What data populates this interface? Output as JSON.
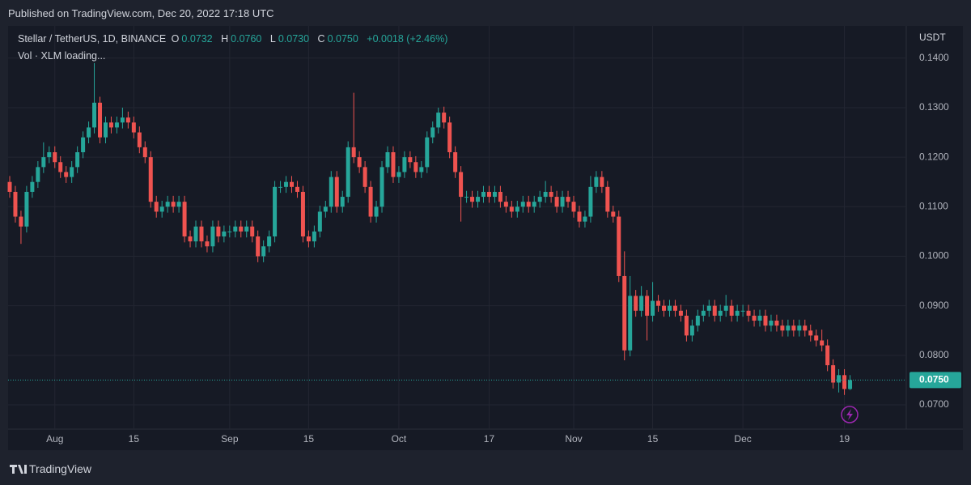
{
  "header": {
    "published": "Published on TradingView.com, Dec 20, 2022 17:18 UTC"
  },
  "footer": {
    "brand": "TradingView"
  },
  "chart_data": {
    "type": "candlestick",
    "title": "Stellar / TetherUS, 1D, BINANCE",
    "legend": {
      "o_label": "O",
      "o": "0.0732",
      "h_label": "H",
      "h": "0.0760",
      "l_label": "L",
      "l": "0.0730",
      "c_label": "C",
      "c": "0.0750",
      "change": "+0.0018 (+2.46%)"
    },
    "volume_label": "Vol · XLM loading...",
    "y_unit": "USDT",
    "up_color": "#26a69a",
    "down_color": "#ef5350",
    "grid": true,
    "categories": [
      null,
      null,
      null,
      null,
      null,
      null,
      null,
      null,
      "Aug",
      null,
      null,
      null,
      null,
      null,
      null,
      null,
      null,
      null,
      null,
      null,
      null,
      null,
      "15",
      null,
      null,
      null,
      null,
      null,
      null,
      null,
      null,
      null,
      null,
      null,
      null,
      null,
      null,
      null,
      null,
      "Sep",
      null,
      null,
      null,
      null,
      null,
      null,
      null,
      null,
      null,
      null,
      null,
      null,
      null,
      "15",
      null,
      null,
      null,
      null,
      null,
      null,
      null,
      null,
      null,
      null,
      null,
      null,
      null,
      null,
      null,
      "Oct",
      null,
      null,
      null,
      null,
      null,
      null,
      null,
      null,
      null,
      null,
      null,
      null,
      null,
      null,
      null,
      "17",
      null,
      null,
      null,
      null,
      null,
      null,
      null,
      null,
      null,
      null,
      null,
      null,
      null,
      null,
      "Nov",
      null,
      null,
      null,
      null,
      null,
      null,
      null,
      null,
      null,
      null,
      null,
      null,
      null,
      "15",
      null,
      null,
      null,
      null,
      null,
      null,
      null,
      null,
      null,
      null,
      null,
      null,
      null,
      null,
      null,
      "Dec",
      null,
      null,
      null,
      null,
      null,
      null,
      null,
      null,
      null,
      null,
      null,
      null,
      null,
      null,
      null,
      null,
      null,
      "19",
      null
    ],
    "open": [
      0.115,
      0.113,
      0.108,
      0.106,
      0.113,
      0.115,
      0.118,
      0.12,
      0.121,
      0.119,
      0.117,
      0.116,
      0.118,
      0.121,
      0.124,
      0.126,
      0.131,
      0.124,
      0.127,
      0.126,
      0.127,
      0.128,
      0.127,
      0.125,
      0.122,
      0.12,
      0.111,
      0.109,
      0.11,
      0.111,
      0.11,
      0.111,
      0.104,
      0.103,
      0.106,
      0.103,
      0.102,
      0.106,
      0.104,
      0.105,
      0.105,
      0.106,
      0.105,
      0.106,
      0.104,
      0.1,
      0.102,
      0.104,
      0.114,
      0.114,
      0.115,
      0.114,
      0.113,
      0.104,
      0.103,
      0.105,
      0.109,
      0.11,
      0.116,
      0.11,
      0.112,
      0.122,
      0.12,
      0.118,
      0.114,
      0.108,
      0.11,
      0.118,
      0.121,
      0.116,
      0.117,
      0.12,
      0.119,
      0.117,
      0.118,
      0.124,
      0.126,
      0.129,
      0.127,
      0.121,
      0.117,
      0.112,
      0.112,
      0.111,
      0.112,
      0.113,
      0.112,
      0.113,
      0.111,
      0.11,
      0.109,
      0.11,
      0.111,
      0.11,
      0.111,
      0.112,
      0.113,
      0.112,
      0.11,
      0.112,
      0.111,
      0.109,
      0.107,
      0.108,
      0.114,
      0.116,
      0.114,
      0.109,
      0.108,
      0.096,
      0.081,
      0.092,
      0.089,
      0.092,
      0.088,
      0.091,
      0.09,
      0.089,
      0.09,
      0.089,
      0.088,
      0.084,
      0.086,
      0.088,
      0.089,
      0.09,
      0.088,
      0.089,
      0.09,
      0.088,
      0.089,
      0.089,
      0.088,
      0.087,
      0.088,
      0.086,
      0.087,
      0.086,
      0.085,
      0.086,
      0.085,
      0.086,
      0.085,
      0.084,
      0.083,
      0.082,
      0.078,
      0.0745,
      0.076,
      0.0732
    ],
    "high": [
      0.1162,
      0.1142,
      0.1092,
      0.1142,
      0.1162,
      0.1192,
      0.123,
      0.1222,
      0.1222,
      0.1202,
      0.1182,
      0.1192,
      0.1222,
      0.1252,
      0.1272,
      0.139,
      0.1322,
      0.1282,
      0.1282,
      0.1282,
      0.13,
      0.1292,
      0.1282,
      0.1262,
      0.1232,
      0.1212,
      0.1122,
      0.1112,
      0.1122,
      0.1122,
      0.1122,
      0.1122,
      0.1052,
      0.1072,
      0.1072,
      0.1042,
      0.1072,
      0.1072,
      0.1062,
      0.1062,
      0.1072,
      0.1072,
      0.1072,
      0.1072,
      0.1052,
      0.1032,
      0.1052,
      0.1152,
      0.1152,
      0.1162,
      0.1162,
      0.1152,
      0.1142,
      0.1052,
      0.1062,
      0.1102,
      0.1112,
      0.1172,
      0.1172,
      0.1132,
      0.1232,
      0.133,
      0.1212,
      0.1192,
      0.1152,
      0.1112,
      0.1192,
      0.1222,
      0.1222,
      0.1182,
      0.1212,
      0.1212,
      0.1202,
      0.1192,
      0.1252,
      0.1272,
      0.13,
      0.1302,
      0.1282,
      0.1222,
      0.1182,
      0.1132,
      0.1132,
      0.1132,
      0.1142,
      0.1142,
      0.1142,
      0.1142,
      0.1122,
      0.1112,
      0.1112,
      0.1122,
      0.1122,
      0.1122,
      0.1132,
      0.1152,
      0.1142,
      0.1132,
      0.1132,
      0.1132,
      0.1122,
      0.1102,
      0.1092,
      0.1162,
      0.1172,
      0.1172,
      0.1152,
      0.1102,
      0.1092,
      0.101,
      0.096,
      0.0932,
      0.094,
      0.0932,
      0.0948,
      0.0922,
      0.0912,
      0.0912,
      0.0912,
      0.0902,
      0.0892,
      0.0872,
      0.0892,
      0.0902,
      0.0912,
      0.0912,
      0.0902,
      0.0922,
      0.0912,
      0.0902,
      0.0902,
      0.0902,
      0.0892,
      0.0892,
      0.0892,
      0.0882,
      0.0882,
      0.0872,
      0.0872,
      0.0872,
      0.0872,
      0.0872,
      0.0862,
      0.0852,
      0.0852,
      0.0832,
      0.0792,
      0.0772,
      0.0772,
      0.076
    ],
    "low": [
      0.1118,
      0.1068,
      0.1025,
      0.1048,
      0.1118,
      0.1138,
      0.1168,
      0.1188,
      0.1178,
      0.1158,
      0.1148,
      0.1148,
      0.1168,
      0.1198,
      0.1228,
      0.1248,
      0.1228,
      0.1228,
      0.1248,
      0.1248,
      0.1258,
      0.1258,
      0.1238,
      0.1208,
      0.1188,
      0.1098,
      0.1078,
      0.1078,
      0.1088,
      0.1088,
      0.1088,
      0.1028,
      0.1018,
      0.1018,
      0.1018,
      0.1008,
      0.1008,
      0.1028,
      0.1028,
      0.1038,
      0.1038,
      0.1038,
      0.1038,
      0.1028,
      0.0988,
      0.0988,
      0.1008,
      0.1028,
      0.1128,
      0.1128,
      0.1128,
      0.1118,
      0.1028,
      0.1018,
      0.1018,
      0.1038,
      0.1078,
      0.1088,
      0.1088,
      0.1088,
      0.1108,
      0.1188,
      0.1168,
      0.1128,
      0.1068,
      0.1068,
      0.1088,
      0.1168,
      0.1148,
      0.1148,
      0.1158,
      0.1178,
      0.1158,
      0.1158,
      0.1168,
      0.1228,
      0.1248,
      0.1258,
      0.1198,
      0.1158,
      0.107,
      0.1108,
      0.1098,
      0.1098,
      0.1108,
      0.1108,
      0.1108,
      0.1098,
      0.1088,
      0.1078,
      0.1078,
      0.1088,
      0.1088,
      0.1088,
      0.1098,
      0.1108,
      0.1108,
      0.1088,
      0.1088,
      0.1098,
      0.1078,
      0.1058,
      0.1058,
      0.1068,
      0.1128,
      0.1128,
      0.1078,
      0.1068,
      0.0948,
      0.079,
      0.0798,
      0.0878,
      0.0878,
      0.083,
      0.0868,
      0.0888,
      0.0878,
      0.0878,
      0.0878,
      0.0868,
      0.0828,
      0.0828,
      0.0848,
      0.0868,
      0.0878,
      0.0868,
      0.0868,
      0.0878,
      0.0868,
      0.0868,
      0.0878,
      0.0868,
      0.0858,
      0.0858,
      0.0848,
      0.0848,
      0.0848,
      0.0838,
      0.0838,
      0.0838,
      0.0838,
      0.0838,
      0.0828,
      0.0818,
      0.0808,
      0.0768,
      0.0733,
      0.0725,
      0.072,
      0.073
    ],
    "close": [
      0.113,
      0.108,
      0.106,
      0.113,
      0.115,
      0.118,
      0.12,
      0.121,
      0.119,
      0.117,
      0.116,
      0.118,
      0.121,
      0.124,
      0.126,
      0.131,
      0.124,
      0.127,
      0.126,
      0.127,
      0.128,
      0.127,
      0.125,
      0.122,
      0.12,
      0.111,
      0.109,
      0.11,
      0.111,
      0.11,
      0.111,
      0.104,
      0.103,
      0.106,
      0.103,
      0.102,
      0.106,
      0.104,
      0.105,
      0.105,
      0.106,
      0.105,
      0.106,
      0.104,
      0.1,
      0.102,
      0.104,
      0.114,
      0.114,
      0.115,
      0.114,
      0.113,
      0.104,
      0.103,
      0.105,
      0.109,
      0.11,
      0.116,
      0.11,
      0.112,
      0.122,
      0.12,
      0.118,
      0.114,
      0.108,
      0.11,
      0.118,
      0.121,
      0.116,
      0.117,
      0.12,
      0.119,
      0.117,
      0.118,
      0.124,
      0.126,
      0.129,
      0.127,
      0.121,
      0.117,
      0.112,
      0.112,
      0.111,
      0.112,
      0.113,
      0.112,
      0.113,
      0.111,
      0.11,
      0.109,
      0.11,
      0.111,
      0.11,
      0.111,
      0.112,
      0.113,
      0.112,
      0.11,
      0.112,
      0.111,
      0.109,
      0.107,
      0.108,
      0.114,
      0.116,
      0.114,
      0.109,
      0.108,
      0.096,
      0.081,
      0.092,
      0.089,
      0.092,
      0.088,
      0.091,
      0.09,
      0.089,
      0.09,
      0.089,
      0.088,
      0.084,
      0.086,
      0.088,
      0.089,
      0.09,
      0.088,
      0.089,
      0.09,
      0.088,
      0.089,
      0.089,
      0.088,
      0.087,
      0.088,
      0.086,
      0.087,
      0.086,
      0.085,
      0.086,
      0.085,
      0.086,
      0.085,
      0.084,
      0.083,
      0.082,
      0.078,
      0.0745,
      0.076,
      0.0732,
      0.075
    ],
    "ylim": [
      0.0651,
      0.1465
    ],
    "yticks": [
      {
        "value": 0.07,
        "label": "0.0700"
      },
      {
        "value": 0.08,
        "label": "0.0800"
      },
      {
        "value": 0.09,
        "label": "0.0900"
      },
      {
        "value": 0.1,
        "label": "0.1000"
      },
      {
        "value": 0.11,
        "label": "0.1100"
      },
      {
        "value": 0.12,
        "label": "0.1200"
      },
      {
        "value": 0.13,
        "label": "0.1300"
      },
      {
        "value": 0.14,
        "label": "0.1400"
      }
    ],
    "last_price": {
      "value": 0.075,
      "label": "0.0750"
    }
  }
}
